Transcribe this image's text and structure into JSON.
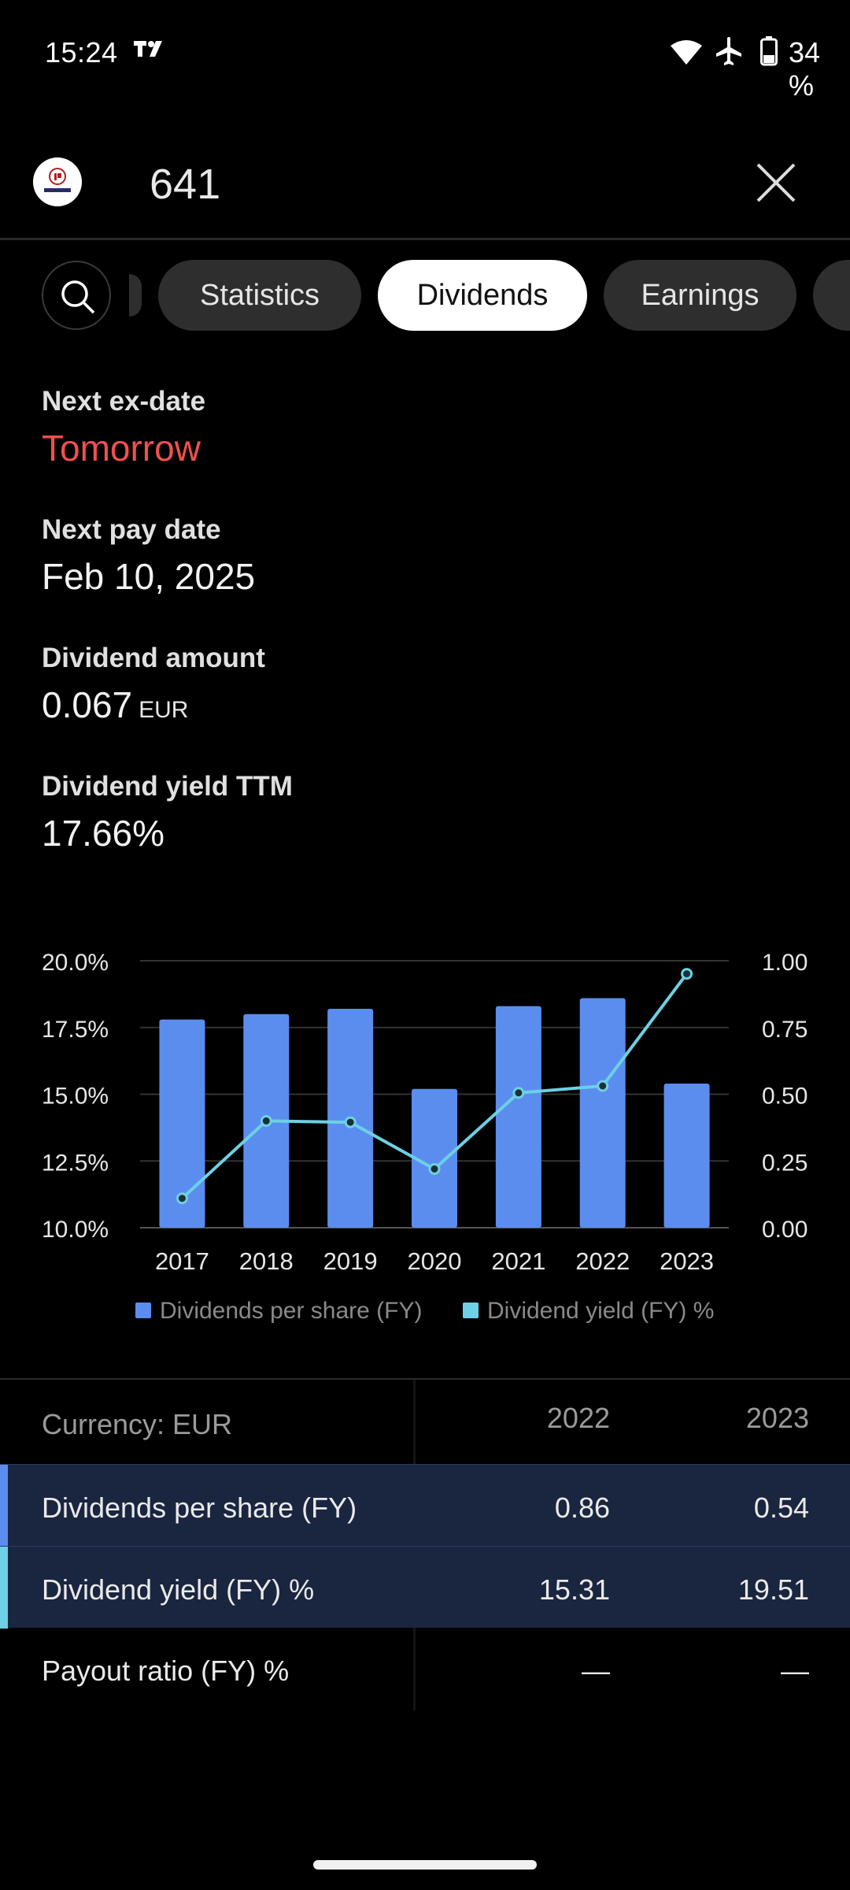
{
  "status_bar": {
    "time": "15:24",
    "battery": "34 %",
    "icons": [
      "tradingview-icon",
      "wifi-icon",
      "airplane-mode-icon",
      "battery-icon"
    ]
  },
  "header": {
    "ticker": "641",
    "logo_icon": "dividend-15-logo",
    "close_icon": "close-icon"
  },
  "tabs": {
    "items": [
      {
        "label": "Statistics"
      },
      {
        "label": "Dividends"
      },
      {
        "label": "Earnings"
      }
    ],
    "active": "Dividends"
  },
  "info": {
    "next_ex_date_label": "Next ex-date",
    "next_ex_date": "Tomorrow",
    "next_pay_date_label": "Next pay date",
    "next_pay_date": "Feb 10, 2025",
    "dividend_amount_label": "Dividend amount",
    "dividend_amount": "0.067",
    "dividend_amount_unit": "EUR",
    "dividend_yield_label": "Dividend yield TTM",
    "dividend_yield": "17.66%"
  },
  "colors": {
    "bar": "#5b8def",
    "line": "#6dd0e4",
    "negative": "#f0504e",
    "highlight_row": "#1a2540"
  },
  "chart_data": {
    "type": "bar",
    "categories": [
      "2017",
      "2018",
      "2019",
      "2020",
      "2021",
      "2022",
      "2023"
    ],
    "series": [
      {
        "name": "Dividends per share (FY)",
        "type": "bar",
        "axis": "right",
        "values": [
          0.78,
          0.8,
          0.82,
          0.52,
          0.83,
          0.86,
          0.54
        ]
      },
      {
        "name": "Dividend yield (FY) %",
        "type": "line",
        "axis": "left",
        "values": [
          11.1,
          14.0,
          13.95,
          12.2,
          15.05,
          15.31,
          19.51
        ]
      }
    ],
    "y_left": {
      "min": 10,
      "max": 20,
      "ticks": [
        "20.0%",
        "17.5%",
        "15.0%",
        "12.5%",
        "10.0%"
      ]
    },
    "y_right": {
      "min": 0,
      "max": 1,
      "ticks": [
        "1.00",
        "0.75",
        "0.50",
        "0.25",
        "0.00"
      ]
    },
    "grid": true,
    "legend_position": "bottom"
  },
  "table": {
    "currency_label": "Currency: EUR",
    "years": [
      "2022",
      "2023"
    ],
    "rows": [
      {
        "label": "Dividends per share (FY)",
        "values": [
          "0.86",
          "0.54"
        ]
      },
      {
        "label": "Dividend yield (FY) %",
        "values": [
          "15.31",
          "19.51"
        ]
      },
      {
        "label": "Payout ratio (FY) %",
        "values": [
          "—",
          "—"
        ]
      }
    ]
  }
}
